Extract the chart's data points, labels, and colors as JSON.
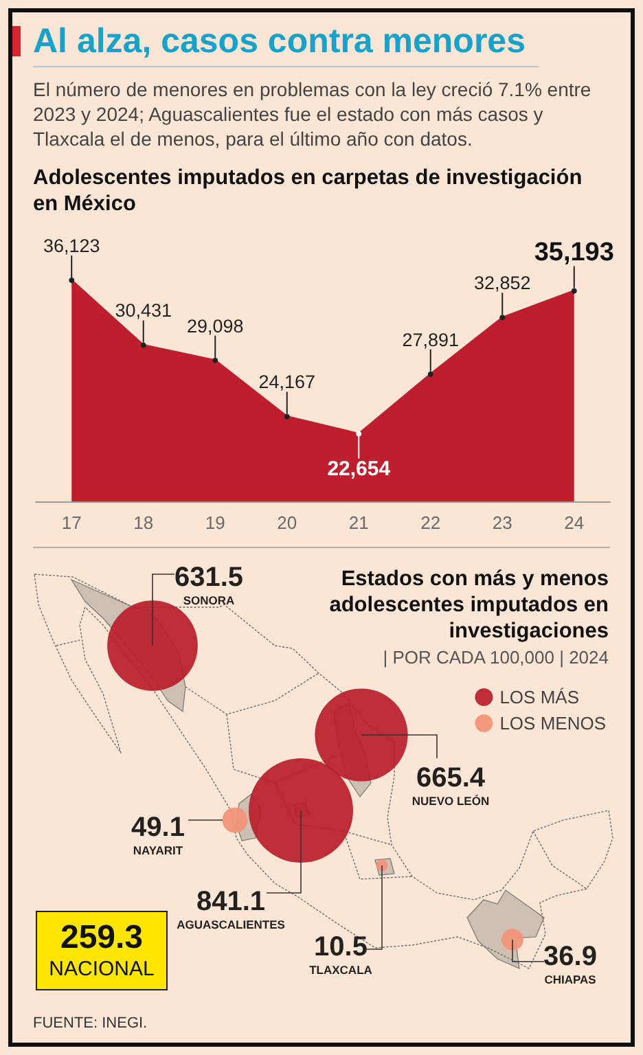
{
  "chart_data": [
    {
      "type": "other",
      "title": "Al alza, casos contra menores",
      "subtitle": "El número de menores en problemas con la ley creció 7.1% entre 2023 y 2024; Aguascalientes fue el estado con más casos y Tlaxcala el de menos, para el último año con datos."
    },
    {
      "type": "area",
      "title": "Adolescentes imputados en carpetas de investigación en México",
      "x": [
        17,
        18,
        19,
        20,
        21,
        22,
        23,
        24
      ],
      "values": [
        36123,
        30431,
        29098,
        24167,
        22654,
        27891,
        32852,
        35193
      ],
      "value_labels": [
        "36,123",
        "30,431",
        "29,098",
        "24,167",
        "22,654",
        "27,891",
        "32,852",
        "35,193"
      ],
      "color": "#be1e2d",
      "xlim": [
        16.5,
        24.5
      ],
      "xticks": [
        17,
        18,
        19,
        20,
        21,
        22,
        23,
        24
      ],
      "tick_labels": "x",
      "marker": "circle"
    },
    {
      "type": "other",
      "title": "Estados con más y menos adolescentes imputados en investigaciones",
      "subtitle": "| POR CADA 100,000 | 2024",
      "categories": [
        "SONORA",
        "NUEVO LEÓN",
        "AGUASCALIENTES",
        "NAYARIT",
        "TLAXCALA",
        "CHIAPAS"
      ],
      "series": [
        {
          "name": "LOS MÁS",
          "color": "#b81f2b",
          "values": [
            631.5,
            665.4,
            841.1,
            null,
            null,
            null
          ]
        },
        {
          "name": "LOS MENOS",
          "color": "#f39277",
          "values": [
            null,
            null,
            null,
            49.1,
            10.5,
            36.9
          ]
        }
      ],
      "data_labels": true,
      "legend": "right",
      "annotations": [
        "FUENTE: INEGI."
      ]
    },
    {
      "type": "other",
      "title": "259.3",
      "subtitle": "NACIONAL"
    }
  ]
}
